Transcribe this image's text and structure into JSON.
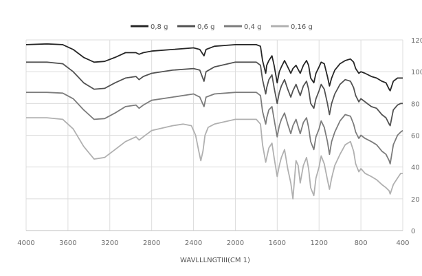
{
  "chart_data": {
    "type": "line",
    "xlabel": "WAVLLLNGTIII(CM 1)",
    "ylabel": "",
    "xlim": [
      4000,
      400
    ],
    "ylim": [
      0,
      120
    ],
    "x_ticks": [
      4000,
      3600,
      3200,
      2800,
      2400,
      2000,
      1600,
      1200,
      800,
      400
    ],
    "x_tick_labels": [
      "4000",
      "3600",
      "3200",
      "2800",
      "2400",
      "2000",
      "1600",
      "1200",
      "800",
      "400"
    ],
    "y_ticks": [
      0,
      20,
      40,
      60,
      80,
      100,
      120
    ],
    "y_tick_labels": [
      "0",
      "20",
      "40",
      "60",
      "80",
      "100",
      "120"
    ],
    "y_axis_side": "right",
    "grid": true,
    "legend_position": "top",
    "series": [
      {
        "name": "0,8 g",
        "color": "#262626",
        "points": [
          [
            4000,
            117
          ],
          [
            3800,
            117.5
          ],
          [
            3650,
            117
          ],
          [
            3550,
            114
          ],
          [
            3450,
            109
          ],
          [
            3350,
            106
          ],
          [
            3250,
            106.5
          ],
          [
            3150,
            109
          ],
          [
            3050,
            112
          ],
          [
            2950,
            112
          ],
          [
            2920,
            111
          ],
          [
            2880,
            112
          ],
          [
            2800,
            113
          ],
          [
            2600,
            114
          ],
          [
            2400,
            115
          ],
          [
            2340,
            114
          ],
          [
            2300,
            110
          ],
          [
            2280,
            114
          ],
          [
            2200,
            116
          ],
          [
            2000,
            117
          ],
          [
            1800,
            117
          ],
          [
            1760,
            116
          ],
          [
            1740,
            107
          ],
          [
            1710,
            99
          ],
          [
            1700,
            104
          ],
          [
            1680,
            107
          ],
          [
            1650,
            110
          ],
          [
            1630,
            104
          ],
          [
            1600,
            93
          ],
          [
            1580,
            100
          ],
          [
            1560,
            103
          ],
          [
            1530,
            107
          ],
          [
            1500,
            103
          ],
          [
            1470,
            99
          ],
          [
            1450,
            102
          ],
          [
            1420,
            104
          ],
          [
            1380,
            99
          ],
          [
            1350,
            104
          ],
          [
            1320,
            107
          ],
          [
            1300,
            104
          ],
          [
            1280,
            96
          ],
          [
            1250,
            93
          ],
          [
            1230,
            99
          ],
          [
            1200,
            103
          ],
          [
            1180,
            106
          ],
          [
            1150,
            105
          ],
          [
            1120,
            97
          ],
          [
            1100,
            91
          ],
          [
            1080,
            96
          ],
          [
            1050,
            101
          ],
          [
            1000,
            105
          ],
          [
            950,
            107
          ],
          [
            900,
            108
          ],
          [
            870,
            106
          ],
          [
            850,
            102
          ],
          [
            820,
            99
          ],
          [
            800,
            100
          ],
          [
            760,
            99
          ],
          [
            700,
            97
          ],
          [
            650,
            96
          ],
          [
            600,
            94
          ],
          [
            560,
            93
          ],
          [
            530,
            89
          ],
          [
            520,
            88
          ],
          [
            490,
            94
          ],
          [
            450,
            96
          ],
          [
            420,
            96
          ],
          [
            400,
            96
          ]
        ]
      },
      {
        "name": "0,6 g",
        "color": "#525252",
        "points": [
          [
            4000,
            106
          ],
          [
            3800,
            106
          ],
          [
            3650,
            105
          ],
          [
            3550,
            100
          ],
          [
            3450,
            93
          ],
          [
            3350,
            89
          ],
          [
            3250,
            89.5
          ],
          [
            3150,
            93
          ],
          [
            3050,
            96
          ],
          [
            2950,
            97
          ],
          [
            2920,
            95
          ],
          [
            2880,
            97
          ],
          [
            2800,
            99
          ],
          [
            2600,
            101
          ],
          [
            2400,
            102
          ],
          [
            2340,
            101
          ],
          [
            2300,
            94
          ],
          [
            2280,
            100
          ],
          [
            2200,
            103
          ],
          [
            2000,
            106
          ],
          [
            1800,
            106
          ],
          [
            1760,
            104
          ],
          [
            1740,
            95
          ],
          [
            1710,
            86
          ],
          [
            1700,
            90
          ],
          [
            1680,
            95
          ],
          [
            1650,
            98
          ],
          [
            1630,
            90
          ],
          [
            1600,
            80
          ],
          [
            1580,
            87
          ],
          [
            1560,
            91
          ],
          [
            1530,
            95
          ],
          [
            1500,
            89
          ],
          [
            1470,
            84
          ],
          [
            1450,
            88
          ],
          [
            1420,
            92
          ],
          [
            1380,
            85
          ],
          [
            1350,
            91
          ],
          [
            1320,
            94
          ],
          [
            1300,
            89
          ],
          [
            1280,
            80
          ],
          [
            1250,
            77
          ],
          [
            1230,
            83
          ],
          [
            1200,
            88
          ],
          [
            1180,
            92
          ],
          [
            1150,
            89
          ],
          [
            1120,
            80
          ],
          [
            1100,
            73
          ],
          [
            1080,
            80
          ],
          [
            1050,
            86
          ],
          [
            1000,
            92
          ],
          [
            950,
            95
          ],
          [
            900,
            94
          ],
          [
            870,
            90
          ],
          [
            850,
            85
          ],
          [
            820,
            81
          ],
          [
            800,
            83
          ],
          [
            760,
            81
          ],
          [
            700,
            78
          ],
          [
            650,
            77
          ],
          [
            600,
            73
          ],
          [
            560,
            71
          ],
          [
            530,
            67
          ],
          [
            520,
            66
          ],
          [
            490,
            76
          ],
          [
            450,
            79
          ],
          [
            420,
            80
          ],
          [
            400,
            80
          ]
        ]
      },
      {
        "name": "0,4 g",
        "color": "#7c7c7c",
        "points": [
          [
            4000,
            87
          ],
          [
            3800,
            87
          ],
          [
            3650,
            86.5
          ],
          [
            3550,
            83
          ],
          [
            3450,
            76
          ],
          [
            3350,
            70
          ],
          [
            3250,
            70.5
          ],
          [
            3150,
            74
          ],
          [
            3050,
            78
          ],
          [
            2950,
            79
          ],
          [
            2920,
            77
          ],
          [
            2880,
            79
          ],
          [
            2800,
            82
          ],
          [
            2600,
            84
          ],
          [
            2400,
            86
          ],
          [
            2340,
            84
          ],
          [
            2300,
            78
          ],
          [
            2280,
            84
          ],
          [
            2200,
            86
          ],
          [
            2000,
            87
          ],
          [
            1800,
            87
          ],
          [
            1760,
            85
          ],
          [
            1740,
            75
          ],
          [
            1710,
            67
          ],
          [
            1700,
            71
          ],
          [
            1680,
            76
          ],
          [
            1650,
            78
          ],
          [
            1630,
            70
          ],
          [
            1600,
            59
          ],
          [
            1580,
            66
          ],
          [
            1560,
            70
          ],
          [
            1530,
            74
          ],
          [
            1500,
            67
          ],
          [
            1470,
            61
          ],
          [
            1450,
            66
          ],
          [
            1420,
            70
          ],
          [
            1380,
            61
          ],
          [
            1350,
            68
          ],
          [
            1320,
            71
          ],
          [
            1300,
            65
          ],
          [
            1280,
            56
          ],
          [
            1250,
            51
          ],
          [
            1230,
            59
          ],
          [
            1200,
            64
          ],
          [
            1180,
            69
          ],
          [
            1150,
            65
          ],
          [
            1120,
            56
          ],
          [
            1100,
            48
          ],
          [
            1080,
            56
          ],
          [
            1050,
            62
          ],
          [
            1000,
            69
          ],
          [
            950,
            73
          ],
          [
            900,
            72
          ],
          [
            870,
            67
          ],
          [
            850,
            62
          ],
          [
            820,
            58
          ],
          [
            800,
            60
          ],
          [
            760,
            58
          ],
          [
            700,
            56
          ],
          [
            650,
            54
          ],
          [
            600,
            50
          ],
          [
            560,
            48
          ],
          [
            530,
            44
          ],
          [
            520,
            42
          ],
          [
            490,
            54
          ],
          [
            450,
            60
          ],
          [
            420,
            62
          ],
          [
            400,
            63
          ]
        ]
      },
      {
        "name": "0,16 g",
        "color": "#b0b0b0",
        "points": [
          [
            4000,
            71
          ],
          [
            3800,
            71
          ],
          [
            3650,
            70
          ],
          [
            3550,
            64
          ],
          [
            3450,
            53
          ],
          [
            3350,
            45
          ],
          [
            3250,
            46
          ],
          [
            3150,
            51
          ],
          [
            3050,
            56
          ],
          [
            2950,
            59
          ],
          [
            2920,
            57
          ],
          [
            2880,
            59
          ],
          [
            2800,
            63
          ],
          [
            2600,
            66
          ],
          [
            2500,
            67
          ],
          [
            2420,
            66
          ],
          [
            2380,
            60
          ],
          [
            2350,
            50
          ],
          [
            2330,
            44
          ],
          [
            2310,
            50
          ],
          [
            2290,
            60
          ],
          [
            2260,
            65
          ],
          [
            2200,
            67
          ],
          [
            2000,
            70
          ],
          [
            1800,
            70
          ],
          [
            1760,
            67
          ],
          [
            1740,
            54
          ],
          [
            1710,
            43
          ],
          [
            1700,
            46
          ],
          [
            1680,
            52
          ],
          [
            1650,
            55
          ],
          [
            1630,
            46
          ],
          [
            1600,
            34
          ],
          [
            1580,
            41
          ],
          [
            1560,
            46
          ],
          [
            1530,
            51
          ],
          [
            1500,
            39
          ],
          [
            1470,
            30
          ],
          [
            1450,
            20
          ],
          [
            1440,
            28
          ],
          [
            1420,
            44
          ],
          [
            1400,
            41
          ],
          [
            1380,
            30
          ],
          [
            1350,
            41
          ],
          [
            1320,
            46
          ],
          [
            1300,
            39
          ],
          [
            1280,
            27
          ],
          [
            1250,
            22
          ],
          [
            1230,
            33
          ],
          [
            1200,
            40
          ],
          [
            1180,
            47
          ],
          [
            1150,
            42
          ],
          [
            1120,
            32
          ],
          [
            1100,
            26
          ],
          [
            1080,
            33
          ],
          [
            1050,
            41
          ],
          [
            1000,
            48
          ],
          [
            950,
            54
          ],
          [
            900,
            56
          ],
          [
            870,
            50
          ],
          [
            850,
            42
          ],
          [
            820,
            37
          ],
          [
            800,
            39
          ],
          [
            760,
            36
          ],
          [
            700,
            34
          ],
          [
            650,
            32
          ],
          [
            600,
            29
          ],
          [
            560,
            27
          ],
          [
            530,
            25
          ],
          [
            520,
            23
          ],
          [
            490,
            29
          ],
          [
            450,
            33
          ],
          [
            420,
            36
          ],
          [
            400,
            36
          ]
        ]
      }
    ]
  }
}
